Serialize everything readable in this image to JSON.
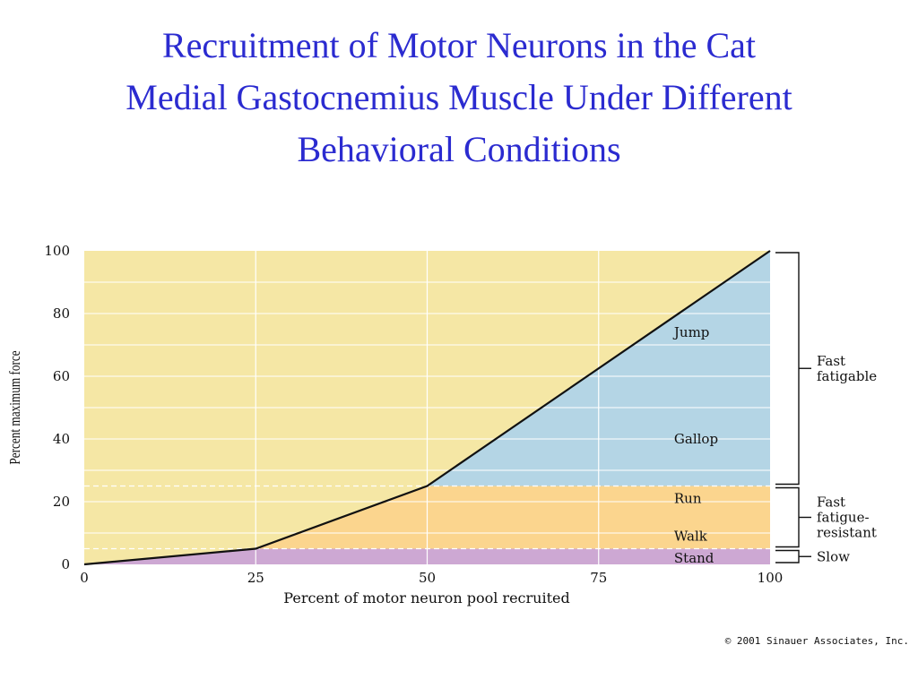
{
  "title_lines": [
    "Recruitment of Motor Neurons in the Cat",
    "Medial Gastocnemius Muscle Under Different",
    "Behavioral Conditions"
  ],
  "chart_data": {
    "type": "line",
    "xlabel": "Percent of motor neuron pool recruited",
    "ylabel": "Percent maximum force",
    "xlim": [
      0,
      100
    ],
    "ylim": [
      0,
      100
    ],
    "x_ticks": [
      0,
      25,
      50,
      75,
      100
    ],
    "y_ticks": [
      0,
      20,
      40,
      60,
      80,
      100
    ],
    "series": [
      {
        "x": [
          0,
          25,
          50,
          100
        ],
        "y": [
          0,
          5,
          25,
          100
        ]
      }
    ],
    "bands": [
      {
        "from": 0,
        "to": 5,
        "color": "#cda8d3"
      },
      {
        "from": 5,
        "to": 25,
        "color": "#fbd58e"
      },
      {
        "from": 25,
        "to": 100,
        "color": "#b4d5e5"
      }
    ],
    "background_color": "#f5e7a5",
    "behavior_labels": [
      {
        "label": "Jump",
        "x": 86,
        "y": 74
      },
      {
        "label": "Gallop",
        "x": 86,
        "y": 40
      },
      {
        "label": "Run",
        "x": 86,
        "y": 21
      },
      {
        "label": "Walk",
        "x": 86,
        "y": 9
      },
      {
        "label": "Stand",
        "x": 86,
        "y": 2
      }
    ],
    "unit_types": [
      {
        "lines": [
          "Fast",
          "fatigable"
        ],
        "from": 25,
        "to": 100
      },
      {
        "lines": [
          "Fast",
          "fatigue-",
          "resistant"
        ],
        "from": 5,
        "to": 25
      },
      {
        "lines": [
          "Slow"
        ],
        "from": 0,
        "to": 5
      }
    ]
  },
  "copyright": "© 2001 Sinauer Associates, Inc."
}
